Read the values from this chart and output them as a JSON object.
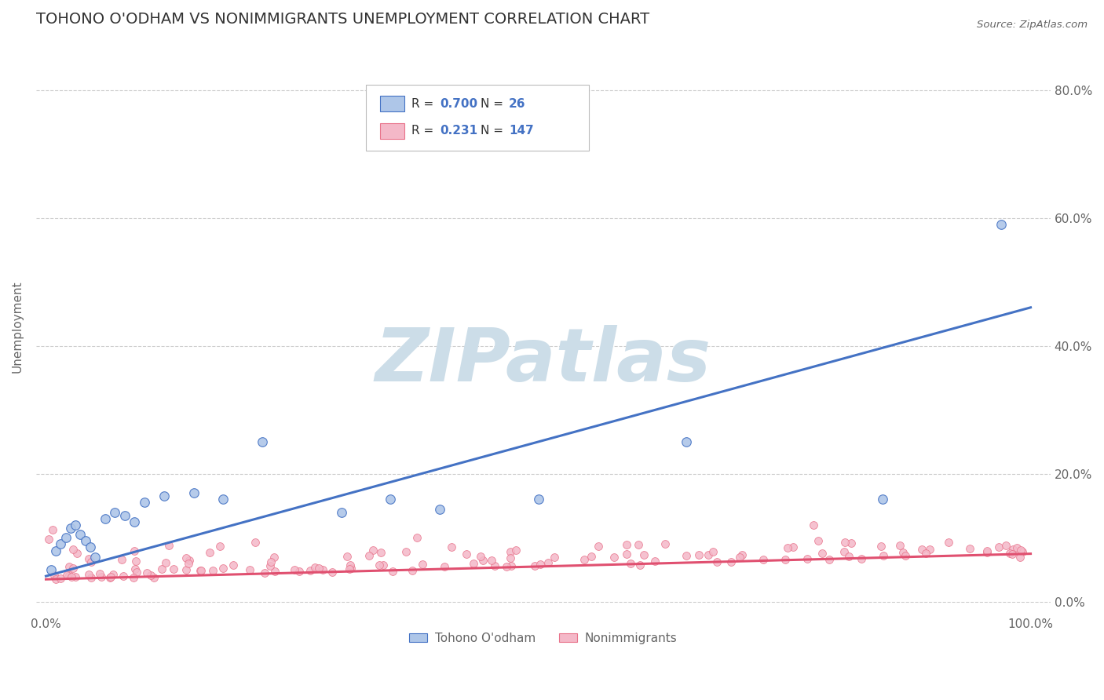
{
  "title": "TOHONO O'ODHAM VS NONIMMIGRANTS UNEMPLOYMENT CORRELATION CHART",
  "source": "Source: ZipAtlas.com",
  "ylabel": "Unemployment",
  "background_color": "#ffffff",
  "watermark_text": "ZIPatlas",
  "legend_entries": [
    {
      "label": "Tohono O'odham",
      "R": "0.700",
      "N": "26",
      "face_color": "#aec6e8",
      "edge_color": "#4472c4",
      "line_color": "#4472c4"
    },
    {
      "label": "Nonimmigrants",
      "R": "0.231",
      "N": "147",
      "face_color": "#f4b8c8",
      "edge_color": "#e8728a",
      "line_color": "#e05070"
    }
  ],
  "tohono_x": [
    0.005,
    0.01,
    0.015,
    0.02,
    0.025,
    0.03,
    0.035,
    0.04,
    0.045,
    0.05,
    0.06,
    0.07,
    0.08,
    0.09,
    0.1,
    0.12,
    0.15,
    0.18,
    0.22,
    0.3,
    0.35,
    0.4,
    0.5,
    0.65,
    0.85,
    0.97
  ],
  "tohono_y": [
    0.05,
    0.08,
    0.09,
    0.1,
    0.115,
    0.12,
    0.105,
    0.095,
    0.085,
    0.07,
    0.13,
    0.14,
    0.135,
    0.125,
    0.155,
    0.165,
    0.17,
    0.16,
    0.25,
    0.14,
    0.16,
    0.145,
    0.16,
    0.25,
    0.16,
    0.59
  ],
  "tohono_line": [
    0.0,
    1.0,
    0.04,
    0.46
  ],
  "nonimm_line": [
    0.0,
    1.0,
    0.035,
    0.075
  ],
  "xlim": [
    -0.01,
    1.02
  ],
  "ylim": [
    -0.02,
    0.88
  ],
  "yticks": [
    0.0,
    0.2,
    0.4,
    0.6,
    0.8
  ],
  "ytick_labels": [
    "0.0%",
    "20.0%",
    "40.0%",
    "60.0%",
    "80.0%"
  ],
  "grid_color": "#c8c8c8",
  "tick_color": "#666666",
  "title_color": "#333333",
  "source_color": "#666666",
  "legend_r_color": "#4472c4",
  "legend_text_color": "#333333"
}
